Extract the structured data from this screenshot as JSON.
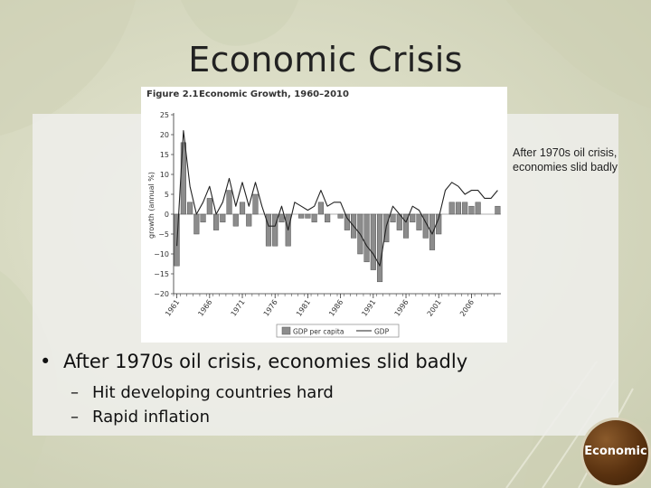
{
  "slide": {
    "title": "Economic Crisis",
    "side_caption": "After 1970s oil crisis, economies slid badly",
    "bullet_main": "After 1970s oil crisis, economies slid badly",
    "sub_bullets": [
      "Hit developing countries hard",
      "Rapid inflation"
    ],
    "logo_text": "Economic"
  },
  "chart_data": {
    "type": "bar",
    "title": "Economic Growth, 1960–2010",
    "figure_label": "Figure 2.1",
    "ylabel": "growth (annual %)",
    "ylim": [
      -20,
      25
    ],
    "yticks": [
      25,
      20,
      15,
      10,
      5,
      0,
      -5,
      -10,
      -15,
      -20
    ],
    "xticks": [
      "1961",
      "1966",
      "1971",
      "1976",
      "1981",
      "1986",
      "1991",
      "1996",
      "2001",
      "2006"
    ],
    "x_range": [
      1961,
      2010
    ],
    "legend": {
      "bar_label": "GDP per capita",
      "line_label": "GDP",
      "placement": "bottom"
    },
    "series": [
      {
        "name": "GDP per capita",
        "kind": "bar",
        "x": [
          1961,
          1962,
          1963,
          1964,
          1965,
          1966,
          1967,
          1968,
          1969,
          1970,
          1971,
          1972,
          1973,
          1974,
          1975,
          1976,
          1977,
          1978,
          1979,
          1980,
          1981,
          1982,
          1983,
          1984,
          1985,
          1986,
          1987,
          1988,
          1989,
          1990,
          1991,
          1992,
          1993,
          1994,
          1995,
          1996,
          1997,
          1998,
          1999,
          2000,
          2001,
          2002,
          2003,
          2004,
          2005,
          2006,
          2007,
          2008,
          2009,
          2010
        ],
        "values": [
          -13,
          18,
          3,
          -5,
          -2,
          4,
          -4,
          -2,
          6,
          -3,
          3,
          -3,
          5,
          0,
          -8,
          -8,
          -2,
          -8,
          0,
          -1,
          -1,
          -2,
          3,
          -2,
          0,
          -1,
          -4,
          -6,
          -10,
          -12,
          -14,
          -17,
          -7,
          -2,
          -4,
          -6,
          -2,
          -4,
          -6,
          -9,
          -5,
          0,
          3,
          3,
          3,
          2,
          3,
          0,
          0,
          2
        ]
      },
      {
        "name": "GDP",
        "kind": "line",
        "x": [
          1961,
          1962,
          1963,
          1964,
          1965,
          1966,
          1967,
          1968,
          1969,
          1970,
          1971,
          1972,
          1973,
          1974,
          1975,
          1976,
          1977,
          1978,
          1979,
          1980,
          1981,
          1982,
          1983,
          1984,
          1985,
          1986,
          1987,
          1988,
          1989,
          1990,
          1991,
          1992,
          1993,
          1994,
          1995,
          1996,
          1997,
          1998,
          1999,
          2000,
          2001,
          2002,
          2003,
          2004,
          2005,
          2006,
          2007,
          2008,
          2009,
          2010
        ],
        "values": [
          -8,
          21,
          7,
          0,
          3,
          7,
          0,
          3,
          9,
          2,
          8,
          2,
          8,
          2,
          -3,
          -3,
          2,
          -4,
          3,
          2,
          1,
          2,
          6,
          2,
          3,
          3,
          -1,
          -3,
          -5,
          -8,
          -10,
          -13,
          -3,
          2,
          0,
          -2,
          2,
          1,
          -2,
          -5,
          -1,
          6,
          8,
          7,
          5,
          6,
          6,
          4,
          4,
          6
        ]
      }
    ]
  }
}
